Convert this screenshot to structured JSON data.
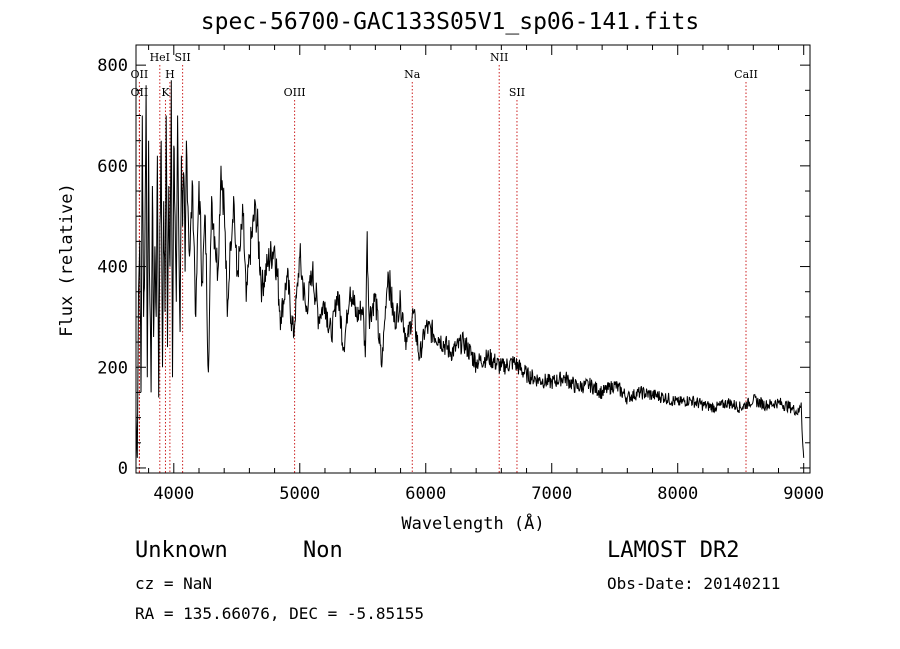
{
  "chart_data": {
    "type": "line",
    "title": "spec-56700-GAC133S05V1_sp06-141.fits",
    "xlabel": "Wavelength (Å)",
    "ylabel": "Flux (relative)",
    "xlim": [
      3700,
      9050
    ],
    "ylim": [
      -10,
      840
    ],
    "xticks": [
      4000,
      5000,
      6000,
      7000,
      8000,
      9000
    ],
    "yticks": [
      0,
      200,
      400,
      600,
      800
    ],
    "grid": false,
    "series": [
      {
        "x": [
          3700,
          3710,
          3720,
          3730,
          3740,
          3750,
          3760,
          3770,
          3780,
          3790,
          3800,
          3810,
          3820,
          3830,
          3840,
          3850,
          3860,
          3870,
          3880,
          3890,
          3900,
          3910,
          3920,
          3930,
          3940,
          3950,
          3960,
          3970,
          3980,
          3990,
          4000,
          4010,
          4020,
          4030,
          4040,
          4050,
          4060,
          4070,
          4080,
          4090,
          4100,
          4125,
          4150,
          4175,
          4200,
          4225,
          4250,
          4275,
          4300,
          4325,
          4350,
          4375,
          4400,
          4425,
          4450,
          4475,
          4500,
          4525,
          4550,
          4575,
          4600,
          4650,
          4700,
          4750,
          4800,
          4850,
          4900,
          4950,
          5000,
          5050,
          5100,
          5150,
          5200,
          5250,
          5300,
          5350,
          5400,
          5450,
          5500,
          5520,
          5535,
          5550,
          5600,
          5650,
          5700,
          5750,
          5800,
          5850,
          5900,
          5950,
          6000,
          6100,
          6200,
          6300,
          6400,
          6500,
          6600,
          6700,
          6800,
          6900,
          7000,
          7100,
          7200,
          7300,
          7400,
          7500,
          7600,
          7700,
          7800,
          7900,
          8000,
          8100,
          8200,
          8300,
          8400,
          8500,
          8600,
          8700,
          8800,
          8900,
          8960,
          8980,
          8990,
          9000
        ],
        "y": [
          110,
          20,
          350,
          450,
          150,
          700,
          300,
          420,
          760,
          180,
          650,
          330,
          150,
          560,
          260,
          440,
          300,
          620,
          140,
          480,
          650,
          200,
          530,
          310,
          700,
          240,
          560,
          400,
          770,
          180,
          640,
          500,
          330,
          700,
          460,
          270,
          620,
          480,
          580,
          390,
          650,
          420,
          560,
          300,
          570,
          370,
          500,
          190,
          540,
          460,
          390,
          600,
          520,
          300,
          450,
          540,
          380,
          430,
          500,
          330,
          420,
          520,
          360,
          410,
          440,
          300,
          380,
          260,
          420,
          310,
          390,
          300,
          330,
          260,
          350,
          240,
          360,
          300,
          320,
          220,
          470,
          300,
          340,
          200,
          390,
          290,
          330,
          250,
          310,
          220,
          280,
          260,
          230,
          250,
          210,
          220,
          200,
          210,
          185,
          175,
          170,
          180,
          160,
          165,
          150,
          165,
          140,
          150,
          145,
          140,
          130,
          135,
          125,
          120,
          130,
          120,
          135,
          125,
          130,
          120,
          110,
          130,
          60,
          20
        ],
        "color": "#000000"
      }
    ],
    "emission_lines": [
      {
        "name": "OII",
        "x": 3727,
        "row": 2
      },
      {
        "name": "OII",
        "x": 3727,
        "row": 3
      },
      {
        "name": "HeI",
        "x": 3889,
        "row": 1
      },
      {
        "name": "H",
        "x": 3969,
        "row": 2
      },
      {
        "name": "K",
        "x": 3934,
        "row": 3
      },
      {
        "name": "SII",
        "x": 4070,
        "row": 1
      },
      {
        "name": "OIII",
        "x": 4959,
        "row": 3
      },
      {
        "name": "Na",
        "x": 5893,
        "row": 2
      },
      {
        "name": "NII",
        "x": 6583,
        "row": 1
      },
      {
        "name": "SII",
        "x": 6724,
        "row": 3
      },
      {
        "name": "CaII",
        "x": 8542,
        "row": 2
      }
    ],
    "line_color": "#cc2222"
  },
  "footer": {
    "class_label": "Unknown",
    "subclass_label": "Non",
    "survey": "LAMOST DR2",
    "cz": "cz = NaN",
    "obs_date": "Obs-Date: 20140211",
    "coords": "RA = 135.66076, DEC =  -5.85155"
  }
}
